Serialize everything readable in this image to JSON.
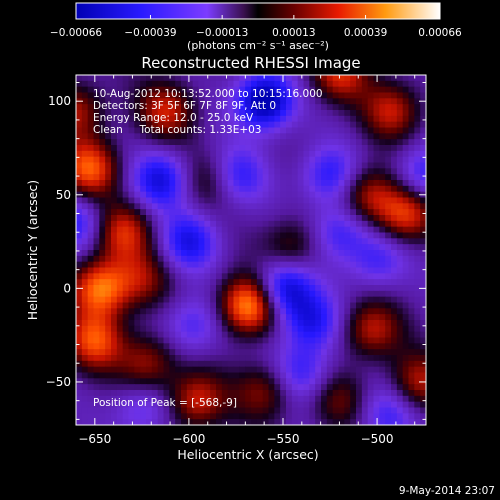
{
  "chart_data": {
    "type": "heatmap",
    "title": "Reconstructed RHESSI Image",
    "xlabel": "Heliocentric X (arcsec)",
    "ylabel": "Heliocentric Y (arcsec)",
    "xlim": [
      -660,
      -474
    ],
    "ylim": [
      -73,
      114
    ],
    "x_ticks": [
      -650,
      -600,
      -550,
      -500
    ],
    "y_ticks": [
      -50,
      0,
      50,
      100
    ],
    "colorbar": {
      "ticks": [
        "-0.00066",
        "-0.00039",
        "-0.00013",
        "0.00013",
        "0.00039",
        "0.00066"
      ],
      "tick_values": [
        -0.00066,
        -0.00039,
        -0.00013,
        0.00013,
        0.00039,
        0.00066
      ],
      "range": [
        -0.00066,
        0.00066
      ],
      "unit_label": "(photons cm⁻² s⁻¹ asec⁻²)"
    },
    "info_lines": [
      "10-Aug-2012 10:13:52.000 to 10:15:16.000",
      "Detectors: 3F 5F 6F 7F 8F 9F, Att 0",
      "Energy Range: 12.0 - 25.0 keV",
      "Clean     Total counts: 1.33E+03"
    ],
    "peak_label": "Position of Peak = [-568,-9]",
    "peak": [
      -568,
      -9
    ],
    "footer_date": "9-May-2014 23:07",
    "blobs": [
      {
        "x": -568,
        "y": -9,
        "v": 1.0
      },
      {
        "x": -647,
        "y": 0,
        "v": 0.85
      },
      {
        "x": -653,
        "y": 64,
        "v": 0.75
      },
      {
        "x": -635,
        "y": 30,
        "v": 0.6
      },
      {
        "x": -612,
        "y": 95,
        "v": 0.55
      },
      {
        "x": -520,
        "y": 115,
        "v": 0.6
      },
      {
        "x": -492,
        "y": 95,
        "v": 0.55
      },
      {
        "x": -485,
        "y": 40,
        "v": 0.7
      },
      {
        "x": -505,
        "y": 50,
        "v": 0.55
      },
      {
        "x": -650,
        "y": -28,
        "v": 0.7
      },
      {
        "x": -622,
        "y": -40,
        "v": 0.5
      },
      {
        "x": -596,
        "y": -60,
        "v": 0.6
      },
      {
        "x": -560,
        "y": -55,
        "v": 0.45
      },
      {
        "x": -545,
        "y": 22,
        "v": 0.4
      },
      {
        "x": -588,
        "y": 58,
        "v": 0.35
      },
      {
        "x": -503,
        "y": -22,
        "v": 0.55
      },
      {
        "x": -478,
        "y": -50,
        "v": 0.5
      },
      {
        "x": -520,
        "y": -60,
        "v": 0.35
      },
      {
        "x": -660,
        "y": 95,
        "v": 0.5
      },
      {
        "x": -625,
        "y": 5,
        "v": 0.4
      },
      {
        "x": -615,
        "y": 58,
        "v": -0.6
      },
      {
        "x": -560,
        "y": 100,
        "v": -0.9
      },
      {
        "x": -575,
        "y": 60,
        "v": -0.5
      },
      {
        "x": -550,
        "y": 0,
        "v": -0.75
      },
      {
        "x": -535,
        "y": -18,
        "v": -0.55
      },
      {
        "x": -525,
        "y": 60,
        "v": -0.5
      },
      {
        "x": -520,
        "y": 30,
        "v": -0.45
      },
      {
        "x": -475,
        "y": 60,
        "v": -0.5
      },
      {
        "x": -598,
        "y": -20,
        "v": -0.4
      },
      {
        "x": -540,
        "y": -45,
        "v": -0.45
      },
      {
        "x": -660,
        "y": 35,
        "v": -0.45
      },
      {
        "x": -600,
        "y": 25,
        "v": -0.55
      },
      {
        "x": -500,
        "y": 15,
        "v": -0.4
      },
      {
        "x": -625,
        "y": -65,
        "v": -0.35
      },
      {
        "x": -495,
        "y": -68,
        "v": -0.4
      }
    ]
  }
}
